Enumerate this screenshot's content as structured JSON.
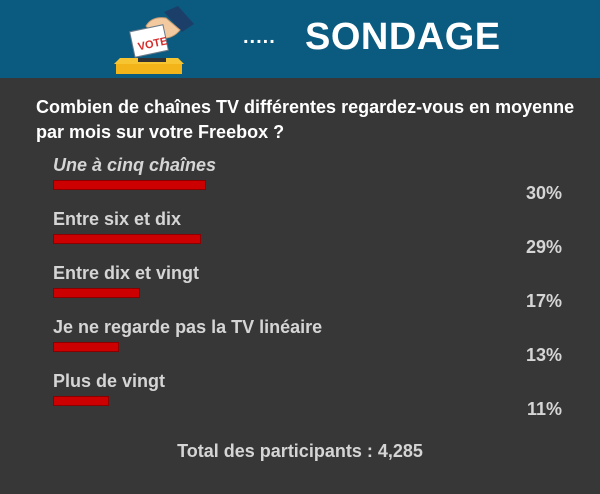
{
  "header": {
    "icon_name": "ballot-box-vote-icon",
    "icon_text": "VOTE",
    "dots": ".....",
    "title": "SONDAGE",
    "background": "#0b5a80"
  },
  "poll": {
    "question": "Combien de chaînes TV différentes regardez-vous en moyenne par mois sur votre Freebox ?",
    "bar_color": "#cc0000",
    "options": [
      {
        "label": "Une à cinq chaînes",
        "percent_text": "30%",
        "percent": 30,
        "selected": true
      },
      {
        "label": "Entre six et dix",
        "percent_text": "29%",
        "percent": 29,
        "selected": false
      },
      {
        "label": "Entre dix et vingt",
        "percent_text": "17%",
        "percent": 17,
        "selected": false
      },
      {
        "label": "Je ne regarde pas la TV linéaire",
        "percent_text": "13%",
        "percent": 13,
        "selected": false
      },
      {
        "label": "Plus de vingt",
        "percent_text": "11%",
        "percent": 11,
        "selected": false
      }
    ],
    "total": "Total des participants : 4,285"
  }
}
